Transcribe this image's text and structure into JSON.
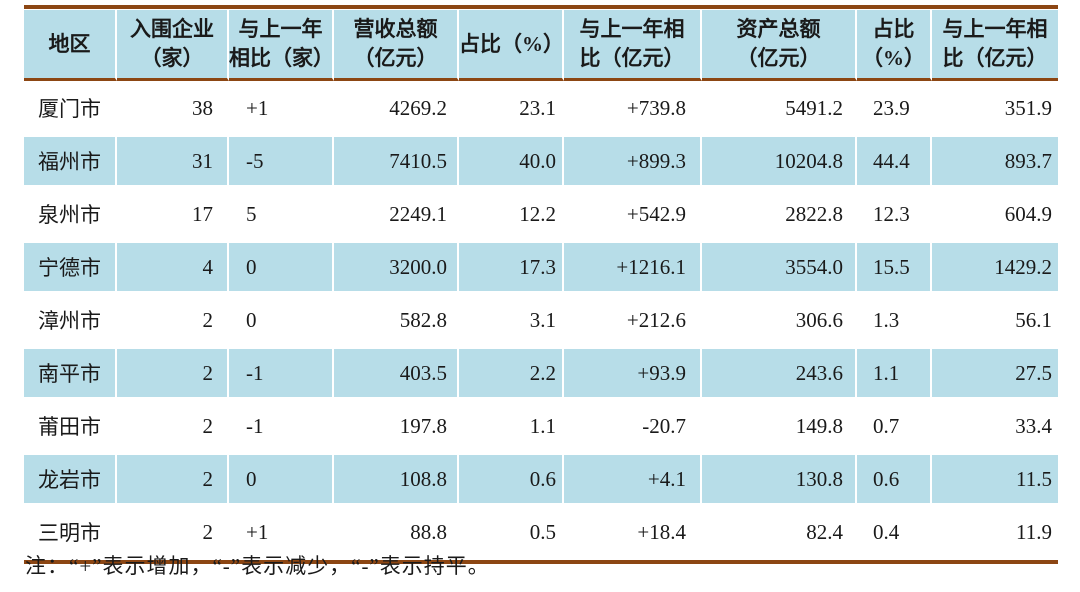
{
  "table": {
    "columns": [
      {
        "label": "地区"
      },
      {
        "label": "入围企业\n（家）"
      },
      {
        "label": "与上一年\n相比（家）"
      },
      {
        "label": "营收总额\n（亿元）"
      },
      {
        "label": "占比（%）"
      },
      {
        "label": "与上一年相\n比（亿元）"
      },
      {
        "label": "资产总额\n（亿元）"
      },
      {
        "label": "占比\n（%）"
      },
      {
        "label": "与上一年相\n比（亿元）"
      }
    ],
    "rows": [
      {
        "cells": [
          "厦门市",
          "38",
          "+1",
          "4269.2",
          "23.1",
          "+739.8",
          "5491.2",
          "23.9",
          "351.9"
        ]
      },
      {
        "cells": [
          "福州市",
          "31",
          "-5",
          "7410.5",
          "40.0",
          "+899.3",
          "10204.8",
          "44.4",
          "893.7"
        ]
      },
      {
        "cells": [
          "泉州市",
          "17",
          "5",
          "2249.1",
          "12.2",
          "+542.9",
          "2822.8",
          "12.3",
          "604.9"
        ]
      },
      {
        "cells": [
          "宁德市",
          "4",
          "0",
          "3200.0",
          "17.3",
          "+1216.1",
          "3554.0",
          "15.5",
          "1429.2"
        ]
      },
      {
        "cells": [
          "漳州市",
          "2",
          "0",
          "582.8",
          "3.1",
          "+212.6",
          "306.6",
          "1.3",
          "56.1"
        ]
      },
      {
        "cells": [
          "南平市",
          "2",
          "-1",
          "403.5",
          "2.2",
          "+93.9",
          "243.6",
          "1.1",
          "27.5"
        ]
      },
      {
        "cells": [
          "莆田市",
          "2",
          "-1",
          "197.8",
          "1.1",
          "-20.7",
          "149.8",
          "0.7",
          "33.4"
        ]
      },
      {
        "cells": [
          "龙岩市",
          "2",
          "0",
          "108.8",
          "0.6",
          "+4.1",
          "130.8",
          "0.6",
          "11.5"
        ]
      },
      {
        "cells": [
          "三明市",
          "2",
          "+1",
          "88.8",
          "0.5",
          "+18.4",
          "82.4",
          "0.4",
          "11.9"
        ]
      }
    ]
  },
  "note": "注：“+”表示增加，“-”表示减少，“-”表示持平。",
  "colors": {
    "row_highlight": "#B7DDE8",
    "rule_brown": "#8C4613",
    "text": "#1A1A1A"
  }
}
